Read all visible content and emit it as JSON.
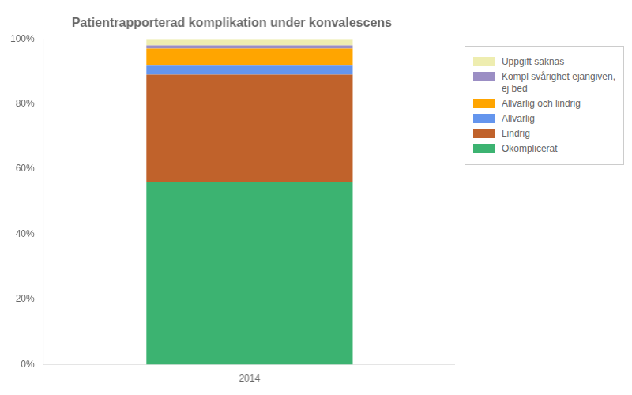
{
  "chart_data": {
    "type": "bar",
    "title": "Patientrapporterad komplikation under konvalescens",
    "categories": [
      "2014"
    ],
    "series": [
      {
        "name": "Okomplicerat",
        "color": "#3CB371",
        "values": [
          56.0
        ]
      },
      {
        "name": "Lindrig",
        "color": "#C0622B",
        "values": [
          33.0
        ]
      },
      {
        "name": "Allvarlig",
        "color": "#6495ED",
        "values": [
          3.0
        ]
      },
      {
        "name": "Allvarlig och lindrig",
        "color": "#FFA500",
        "values": [
          5.0
        ]
      },
      {
        "name": "Kompl svårighet ejangiven,\nej bed",
        "color": "#9B8EC4",
        "values": [
          1.0
        ]
      },
      {
        "name": "Uppgift saknas",
        "color": "#EEEDB0",
        "values": [
          2.0
        ]
      }
    ],
    "stacked": true,
    "ylim": [
      0,
      100
    ],
    "yticks": [
      {
        "value": 0,
        "label": "0%"
      },
      {
        "value": 20,
        "label": "20%"
      },
      {
        "value": 40,
        "label": "40%"
      },
      {
        "value": 60,
        "label": "60%"
      },
      {
        "value": 80,
        "label": "80%"
      },
      {
        "value": 100,
        "label": "100%"
      }
    ],
    "grid": false,
    "legend": "right"
  }
}
